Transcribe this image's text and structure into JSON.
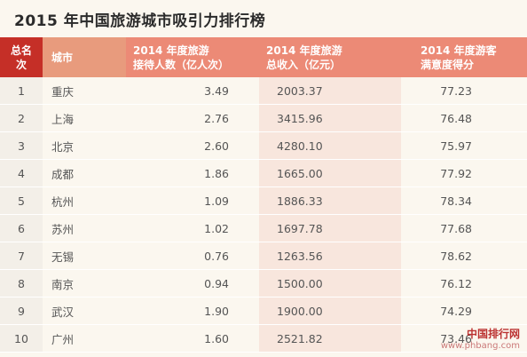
{
  "title": "2015 年中国旅游城市吸引力排行榜",
  "headers": [
    "总名次",
    "城市",
    "2014 年度旅游接待人数（亿人次）",
    "2014 年度旅游总收入（亿元）",
    "2014 年度游客满意度得分"
  ],
  "header_lines": [
    [
      "总名",
      "次"
    ],
    [
      "城市"
    ],
    [
      "2014 年度旅游",
      "接待人数（亿人次）"
    ],
    [
      "2014 年度旅游",
      "总收入（亿元）"
    ],
    [
      "2014 年度游客",
      "满意度得分"
    ]
  ],
  "chart_data": {
    "type": "table",
    "title": "2015 年中国旅游城市吸引力排行榜",
    "columns": [
      "总名次",
      "城市",
      "2014 年度旅游接待人数（亿人次）",
      "2014 年度旅游总收入（亿元）",
      "2014 年度游客满意度得分"
    ],
    "rows": [
      [
        "1",
        "重庆",
        "3.49",
        "2003.37",
        "77.23"
      ],
      [
        "2",
        "上海",
        "2.76",
        "3415.96",
        "76.48"
      ],
      [
        "3",
        "北京",
        "2.60",
        "4280.10",
        "75.97"
      ],
      [
        "4",
        "成都",
        "1.86",
        "1665.00",
        "77.92"
      ],
      [
        "5",
        "杭州",
        "1.09",
        "1886.33",
        "78.34"
      ],
      [
        "6",
        "苏州",
        "1.02",
        "1697.78",
        "77.68"
      ],
      [
        "7",
        "无锡",
        "0.76",
        "1263.56",
        "78.62"
      ],
      [
        "8",
        "南京",
        "0.94",
        "1500.00",
        "76.12"
      ],
      [
        "9",
        "武汉",
        "1.90",
        "1900.00",
        "74.29"
      ],
      [
        "10",
        "广州",
        "1.60",
        "2521.82",
        "73.46"
      ]
    ]
  },
  "watermark": {
    "line1": "中国排行网",
    "line2": "www.phbang.com"
  }
}
